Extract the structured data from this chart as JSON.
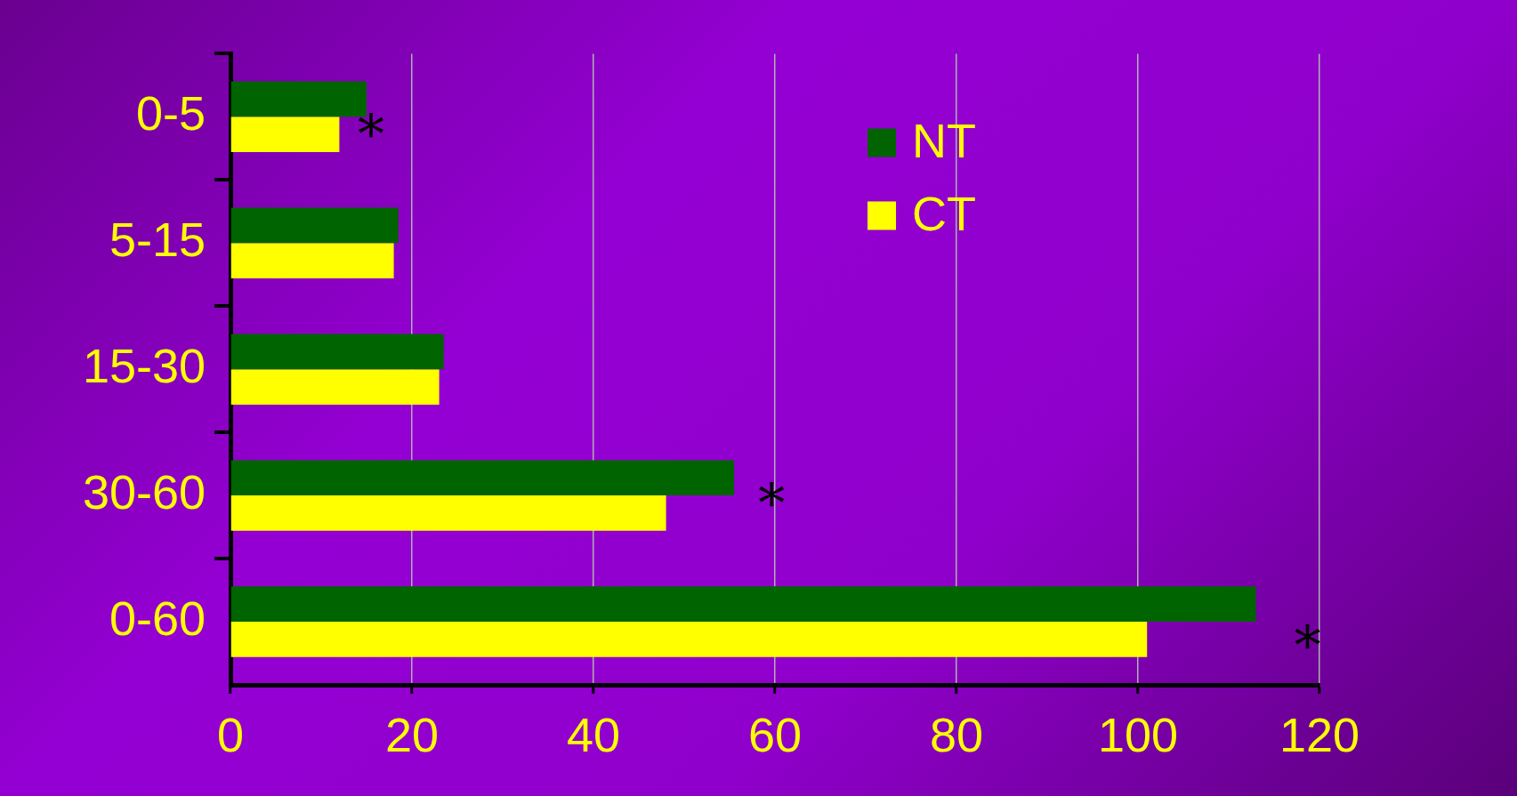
{
  "chart_data": {
    "type": "bar",
    "orientation": "horizontal",
    "categories": [
      "0-5",
      "5-15",
      "15-30",
      "30-60",
      "0-60"
    ],
    "series": [
      {
        "name": "NT",
        "color": "#006400",
        "values": [
          15,
          18.5,
          23.5,
          55.5,
          113
        ]
      },
      {
        "name": "CT",
        "color": "#ffff00",
        "values": [
          12,
          18,
          23,
          48,
          101
        ]
      }
    ],
    "xlim": [
      0,
      120
    ],
    "xticks": [
      0,
      20,
      40,
      60,
      80,
      100,
      120
    ],
    "grid": "x",
    "legend": "top",
    "annotations": [
      {
        "text": "*",
        "x": 15.5,
        "y": "0-5"
      },
      "*",
      "*"
    ]
  }
}
